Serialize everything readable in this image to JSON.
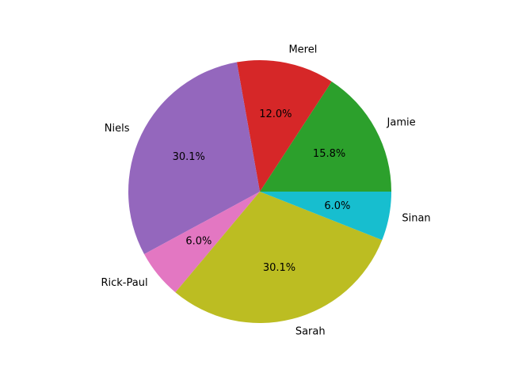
{
  "chart_data": {
    "type": "pie",
    "start_angle_deg": 0,
    "direction": "counterclockwise",
    "slices": [
      {
        "label": "Jamie",
        "pct_label": "15.8%",
        "value": 15.8,
        "color": "#2ca02c"
      },
      {
        "label": "Merel",
        "pct_label": "12.0%",
        "value": 12.0,
        "color": "#d62728"
      },
      {
        "label": "Niels",
        "pct_label": "30.1%",
        "value": 30.1,
        "color": "#9467bd"
      },
      {
        "label": "Rick-Paul",
        "pct_label": "6.0%",
        "value": 6.0,
        "color": "#e377c2"
      },
      {
        "label": "Sarah",
        "pct_label": "30.1%",
        "value": 30.1,
        "color": "#bcbd22"
      },
      {
        "label": "Sinan",
        "pct_label": "6.0%",
        "value": 6.0,
        "color": "#17becf"
      }
    ]
  }
}
